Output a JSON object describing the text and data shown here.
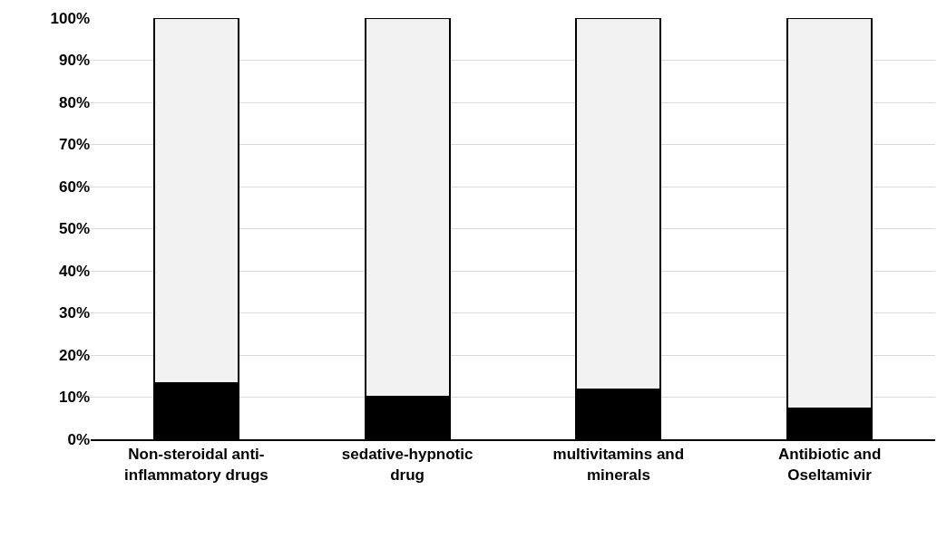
{
  "chart_data": {
    "type": "bar",
    "stacked": true,
    "categories": [
      "Non-steroidal anti-inflammatory drugs",
      "sedative-hypnotic drug",
      "multivitamins and minerals",
      "Antibiotic and Oseltamivir"
    ],
    "series": [
      {
        "color": "#000000",
        "values": [
          13.3,
          10.1,
          11.8,
          7.3
        ]
      },
      {
        "color": "#f2f2f2",
        "values": [
          86.7,
          89.9,
          88.2,
          92.7
        ]
      }
    ],
    "ylim": [
      0,
      100
    ],
    "yticks": [
      {
        "value": 0,
        "label": "0%"
      },
      {
        "value": 10,
        "label": "10%"
      },
      {
        "value": 20,
        "label": "20%"
      },
      {
        "value": 30,
        "label": "30%"
      },
      {
        "value": 40,
        "label": "40%"
      },
      {
        "value": 50,
        "label": "50%"
      },
      {
        "value": 60,
        "label": "60%"
      },
      {
        "value": 70,
        "label": "70%"
      },
      {
        "value": 80,
        "label": "80%"
      },
      {
        "value": 90,
        "label": "90%"
      },
      {
        "value": 100,
        "label": "100%"
      }
    ],
    "grid": "y"
  }
}
